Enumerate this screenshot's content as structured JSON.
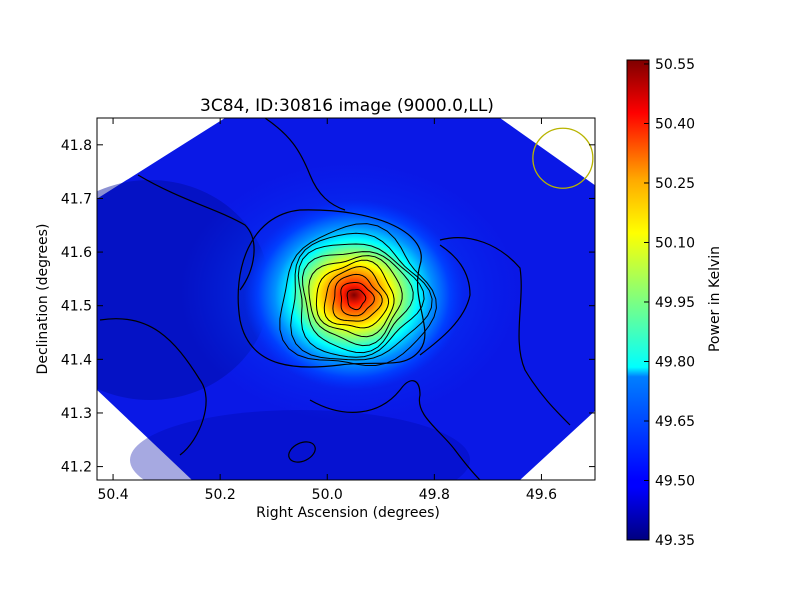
{
  "chart_data": {
    "type": "heatmap",
    "title": "3C84, ID:30816 image (9000.0,LL)",
    "xlabel": "Right Ascension (degrees)",
    "ylabel": "Declination (degrees)",
    "xlim": [
      50.43,
      49.5
    ],
    "ylim": [
      41.175,
      41.85
    ],
    "x_ticks": [
      50.4,
      50.2,
      50.0,
      49.8,
      49.6
    ],
    "x_tick_labels": [
      "50.4",
      "50.2",
      "50.0",
      "49.8",
      "49.6"
    ],
    "y_ticks": [
      41.2,
      41.3,
      41.4,
      41.5,
      41.6,
      41.7,
      41.8
    ],
    "y_tick_labels": [
      "41.2",
      "41.3",
      "41.4",
      "41.5",
      "41.6",
      "41.7",
      "41.8"
    ],
    "colormap": "jet",
    "colorbar": {
      "label": "Power in Kelvin",
      "range": [
        49.35,
        50.56
      ],
      "ticks": [
        49.35,
        49.5,
        49.65,
        49.8,
        49.95,
        50.1,
        50.25,
        50.4,
        50.55
      ],
      "tick_labels": [
        "49.35",
        "49.50",
        "49.65",
        "49.80",
        "49.95",
        "50.10",
        "50.25",
        "50.40",
        "50.55"
      ]
    },
    "source": {
      "ra": 49.95,
      "dec": 41.52,
      "peak_value": 50.55
    },
    "background_value": 49.45,
    "contour_count": 10,
    "beam_circle": {
      "ra": 49.56,
      "dec": 41.775,
      "color": "#b8b400"
    },
    "grid": false
  }
}
